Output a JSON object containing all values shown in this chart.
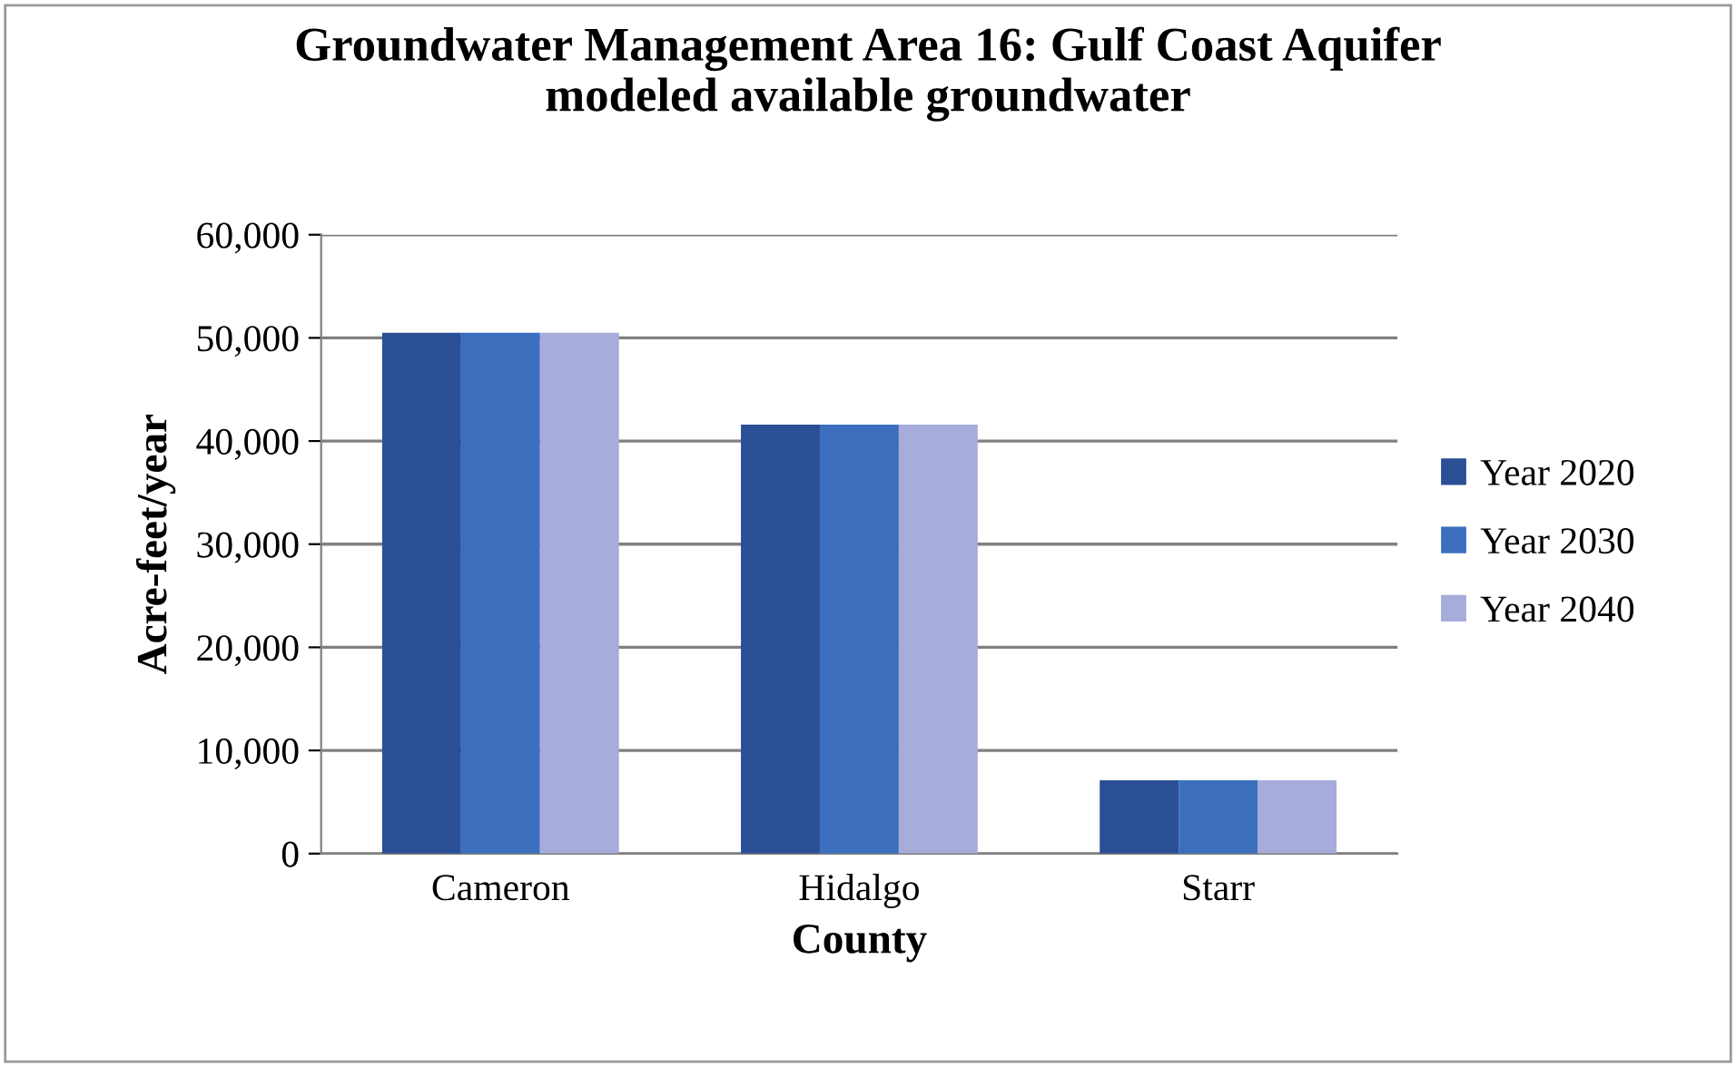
{
  "chart_data": {
    "type": "bar",
    "title": "Groundwater Management Area 16: Gulf Coast Aquifer\nmodeled available groundwater",
    "xlabel": "County",
    "ylabel": "Acre-feet/year",
    "categories": [
      "Cameron",
      "Hidalgo",
      "Starr"
    ],
    "series": [
      {
        "name": "Year 2020",
        "color": "#2b4f95",
        "values": [
          50500,
          41600,
          7100
        ]
      },
      {
        "name": "Year 2030",
        "color": "#3b6fbe",
        "values": [
          50500,
          41600,
          7100
        ]
      },
      {
        "name": "Year 2040",
        "color": "#a7acdb",
        "values": [
          50500,
          41600,
          7100
        ]
      }
    ],
    "ylim": [
      0,
      60000
    ],
    "yticks": [
      {
        "value": 0,
        "label": "0"
      },
      {
        "value": 10000,
        "label": "10,000"
      },
      {
        "value": 20000,
        "label": "20,000"
      },
      {
        "value": 30000,
        "label": "30,000"
      },
      {
        "value": 40000,
        "label": "40,000"
      },
      {
        "value": 50000,
        "label": "50,000"
      },
      {
        "value": 60000,
        "label": "60,000"
      }
    ],
    "grid": "y",
    "legend": "right"
  }
}
